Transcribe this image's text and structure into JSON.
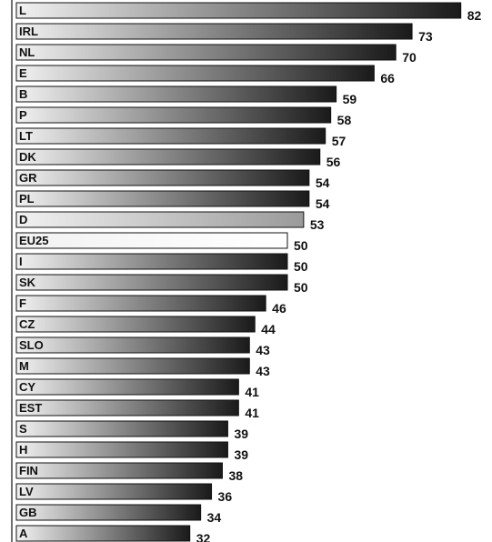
{
  "chart_data": {
    "type": "bar",
    "orientation": "horizontal",
    "categories": [
      "L",
      "IRL",
      "NL",
      "E",
      "B",
      "P",
      "LT",
      "DK",
      "GR",
      "PL",
      "D",
      "EU25",
      "I",
      "SK",
      "F",
      "CZ",
      "SLO",
      "M",
      "CY",
      "EST",
      "S",
      "H",
      "FIN",
      "LV",
      "GB",
      "A"
    ],
    "values": [
      82,
      73,
      70,
      66,
      59,
      58,
      57,
      56,
      54,
      54,
      53,
      50,
      50,
      50,
      46,
      44,
      43,
      43,
      41,
      41,
      39,
      39,
      38,
      36,
      34,
      32
    ],
    "colors": [
      "#1a1a1a",
      "#1a1a1a",
      "#1a1a1a",
      "#1a1a1a",
      "#1a1a1a",
      "#1a1a1a",
      "#1a1a1a",
      "#1a1a1a",
      "#1a1a1a",
      "#1a1a1a",
      "#9a9a9a",
      "#ffffff",
      "#1a1a1a",
      "#1a1a1a",
      "#1a1a1a",
      "#1a1a1a",
      "#1a1a1a",
      "#1a1a1a",
      "#1a1a1a",
      "#1a1a1a",
      "#1a1a1a",
      "#1a1a1a",
      "#1a1a1a",
      "#1a1a1a",
      "#1a1a1a",
      "#1a1a1a"
    ]
  }
}
